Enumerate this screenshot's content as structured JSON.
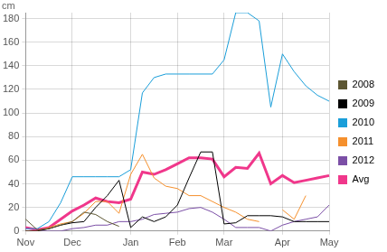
{
  "chart_data": {
    "type": "line",
    "y_label": "cm",
    "categories": [
      "Nov",
      null,
      null,
      null,
      "Dec",
      null,
      null,
      null,
      null,
      "Jan",
      null,
      null,
      null,
      "Feb",
      null,
      null,
      null,
      "Mar",
      null,
      null,
      null,
      null,
      "Apr",
      null,
      null,
      null,
      "May"
    ],
    "series": [
      {
        "name": "2008",
        "color": "#5c5632",
        "values": [
          10,
          1,
          2,
          5,
          8,
          16,
          14,
          8,
          4,
          null,
          null,
          null,
          null,
          null,
          null,
          null,
          null,
          null,
          null,
          null,
          null,
          null,
          null,
          null,
          null,
          null,
          null
        ]
      },
      {
        "name": "2009",
        "color": "#000000",
        "values": [
          0,
          0,
          2,
          5,
          7,
          8,
          20,
          30,
          43,
          3,
          12,
          8,
          12,
          22,
          45,
          67,
          67,
          6,
          7,
          13,
          13,
          13,
          12,
          8,
          8,
          8,
          8
        ]
      },
      {
        "name": "2010",
        "color": "#1a9ed9",
        "values": [
          2,
          2,
          8,
          24,
          46,
          46,
          46,
          46,
          46,
          52,
          117,
          130,
          133,
          133,
          133,
          133,
          133,
          145,
          185,
          185,
          178,
          105,
          150,
          135,
          123,
          115,
          110
        ]
      },
      {
        "name": "2011",
        "color": "#f5902d",
        "values": [
          0,
          0,
          3,
          6,
          8,
          15,
          25,
          25,
          15,
          48,
          65,
          45,
          38,
          36,
          30,
          30,
          25,
          20,
          16,
          10,
          8,
          null,
          18,
          10,
          30,
          null,
          null
        ]
      },
      {
        "name": "2012",
        "color": "#7b4fa6",
        "values": [
          0,
          0,
          0,
          0,
          2,
          3,
          5,
          5,
          8,
          8,
          10,
          14,
          15,
          16,
          19,
          20,
          16,
          10,
          3,
          3,
          3,
          0,
          5,
          8,
          10,
          12,
          22
        ]
      },
      {
        "name": "Avg",
        "color": "#f0378b",
        "values": [
          3,
          1,
          3,
          10,
          17,
          22,
          28,
          25,
          24,
          27,
          50,
          48,
          52,
          57,
          62,
          62,
          61,
          46,
          54,
          53,
          66,
          40,
          47,
          41,
          43,
          45,
          47
        ]
      }
    ],
    "ylim": [
      0,
      185
    ],
    "yticks": [
      0,
      20,
      40,
      60,
      80,
      100,
      120,
      140,
      160,
      180
    ],
    "grid": true,
    "legend": "right"
  }
}
